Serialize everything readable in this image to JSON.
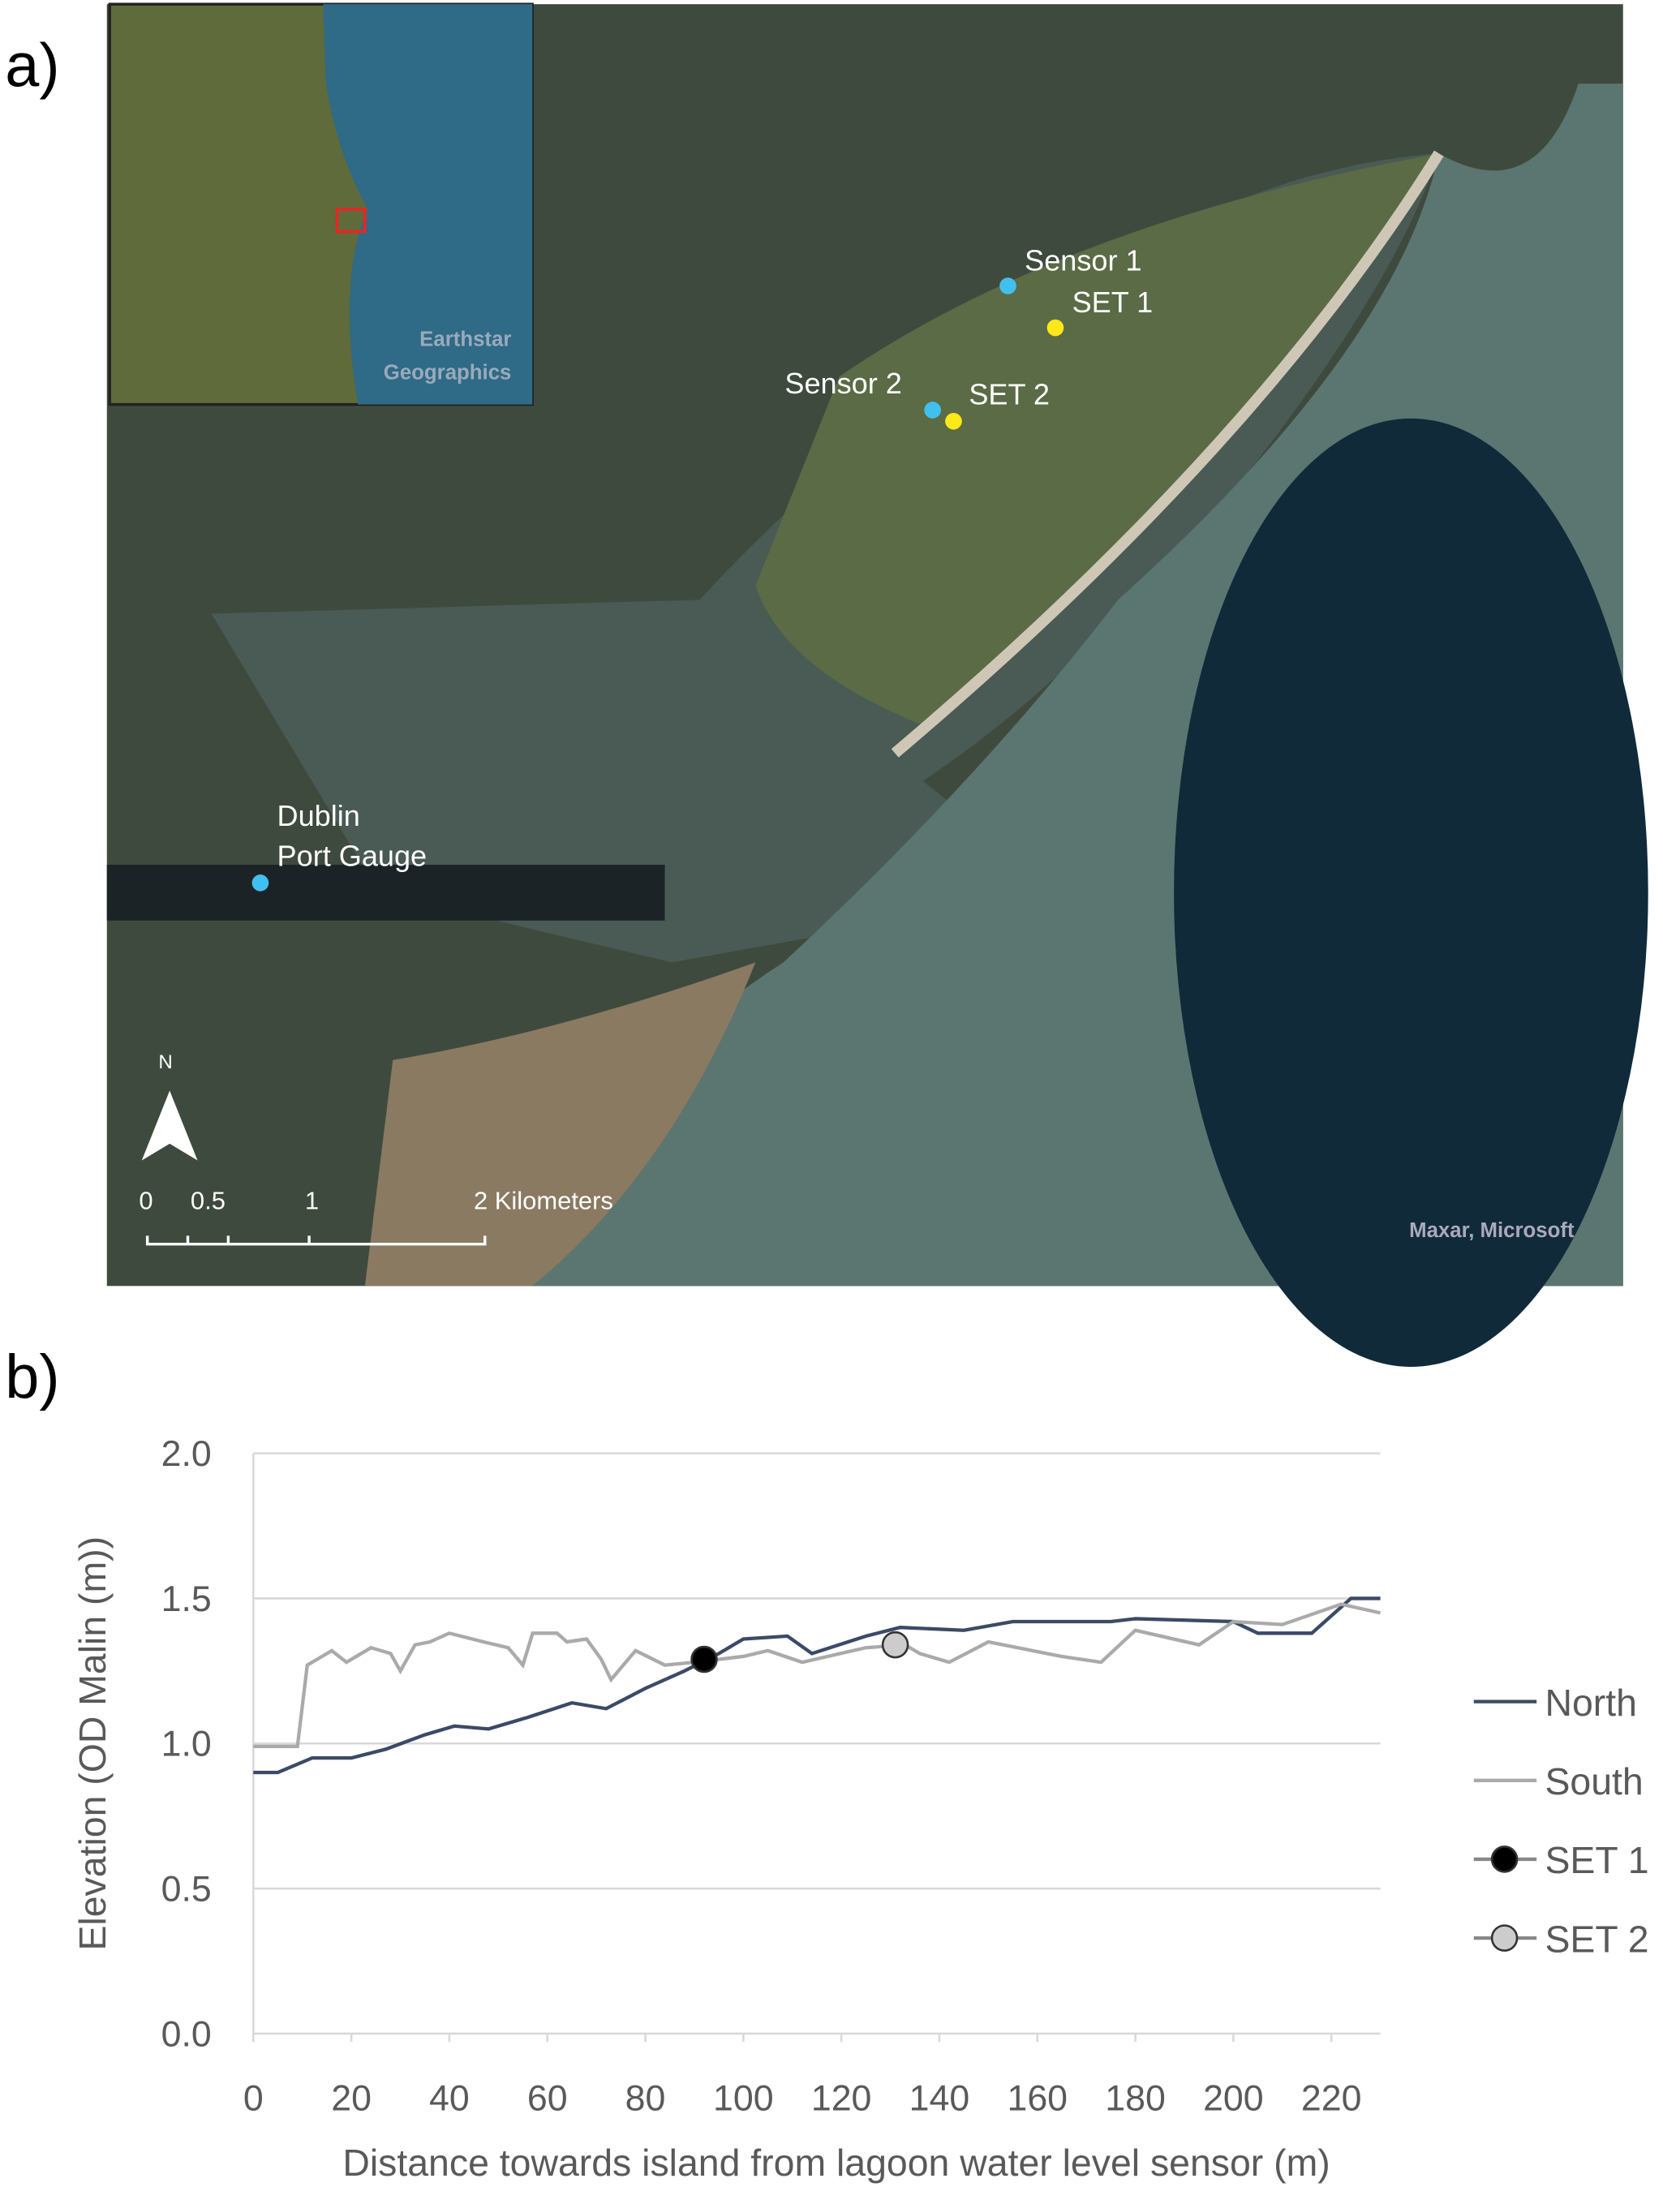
{
  "panels": {
    "a": "a)",
    "b": "b)"
  },
  "map": {
    "labels": {
      "sensor1": "Sensor 1",
      "set1": "SET 1",
      "sensor2": "Sensor 2",
      "set2": "SET 2",
      "dublin1": "Dublin",
      "dublin2": "Port Gauge",
      "inset1": "Earthstar",
      "inset2": "Geographics",
      "credit": "Maxar, Microsoft",
      "north": "N"
    },
    "scale_labels": [
      "0",
      "0.5",
      "1",
      "2 Kilometers"
    ]
  },
  "chart_data": {
    "type": "line",
    "x_label": "Distance towards island from lagoon water level sensor (m)",
    "y_label": "Elevation (OD Malin (m))",
    "xlim": [
      0,
      230
    ],
    "xticks": [
      0,
      20,
      40,
      60,
      80,
      100,
      120,
      140,
      160,
      180,
      200,
      220
    ],
    "ylim": [
      0,
      2
    ],
    "yticks": [
      {
        "value": 0,
        "label": "0.0"
      },
      {
        "value": 0.5,
        "label": "0.5"
      },
      {
        "value": 1,
        "label": "1.0"
      },
      {
        "value": 1.5,
        "label": "1.5"
      },
      {
        "value": 2,
        "label": "2.0"
      }
    ],
    "grid": true,
    "legend": "right",
    "series": [
      {
        "name": "North",
        "color": "#3b4a66",
        "marker": false,
        "x": [
          0,
          5,
          12,
          20,
          27,
          35,
          41,
          48,
          56,
          65,
          72,
          80,
          88,
          95,
          100,
          109,
          114,
          125,
          132,
          145,
          155,
          175,
          180,
          200,
          205,
          216,
          224,
          230
        ],
        "values": [
          0.9,
          0.9,
          0.95,
          0.95,
          0.98,
          1.03,
          1.06,
          1.05,
          1.09,
          1.14,
          1.12,
          1.19,
          1.25,
          1.31,
          1.36,
          1.37,
          1.31,
          1.37,
          1.4,
          1.39,
          1.42,
          1.42,
          1.43,
          1.42,
          1.38,
          1.38,
          1.5,
          1.5
        ]
      },
      {
        "name": "South",
        "color": "#aaaaaa",
        "marker": false,
        "x": [
          0,
          9,
          11,
          16,
          19,
          24,
          28,
          30,
          33,
          36,
          40,
          47,
          52,
          55,
          57,
          62,
          64,
          68,
          71,
          73,
          78,
          84,
          90,
          100,
          105,
          112,
          125,
          133,
          136,
          142,
          150,
          165,
          173,
          180,
          193,
          200,
          210,
          222,
          230
        ],
        "values": [
          0.99,
          0.99,
          1.27,
          1.32,
          1.28,
          1.33,
          1.31,
          1.25,
          1.34,
          1.35,
          1.38,
          1.35,
          1.33,
          1.27,
          1.38,
          1.38,
          1.35,
          1.36,
          1.29,
          1.22,
          1.32,
          1.27,
          1.28,
          1.3,
          1.32,
          1.28,
          1.33,
          1.34,
          1.31,
          1.28,
          1.35,
          1.3,
          1.28,
          1.39,
          1.34,
          1.42,
          1.41,
          1.48,
          1.45
        ]
      },
      {
        "name": "SET 1",
        "color": "#000000",
        "marker": true,
        "x": [
          92
        ],
        "values": [
          1.29
        ]
      },
      {
        "name": "SET 2",
        "color": "#cccccc",
        "marker": true,
        "x": [
          131
        ],
        "values": [
          1.34
        ]
      }
    ]
  }
}
